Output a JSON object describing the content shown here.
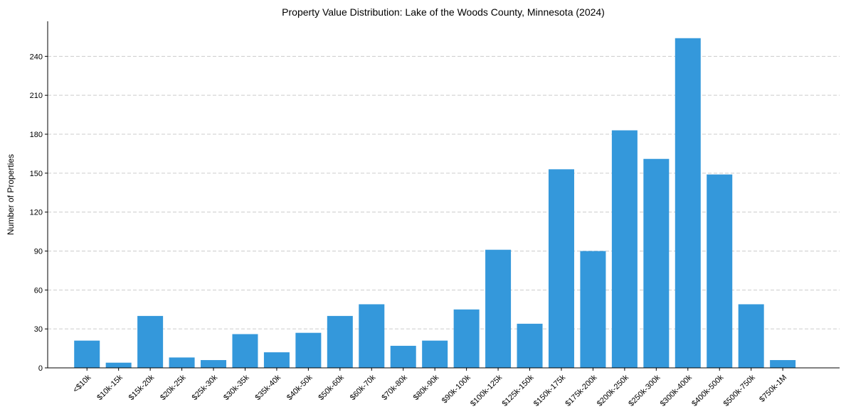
{
  "chart_data": {
    "type": "bar",
    "title": "Property Value Distribution: Lake of the Woods County, Minnesota (2024)",
    "xlabel": "",
    "ylabel": "Number of Properties",
    "ylim": [
      0,
      267
    ],
    "yticks": [
      0,
      30,
      60,
      90,
      120,
      150,
      180,
      210,
      240
    ],
    "grid": "y-dashed",
    "bar_color": "#3498db",
    "categories": [
      "<$10k",
      "$10k-15k",
      "$15k-20k",
      "$20k-25k",
      "$25k-30k",
      "$30k-35k",
      "$35k-40k",
      "$40k-50k",
      "$50k-60k",
      "$60k-70k",
      "$70k-80k",
      "$80k-90k",
      "$90k-100k",
      "$100k-125k",
      "$125k-150k",
      "$150k-175k",
      "$175k-200k",
      "$200k-250k",
      "$250k-300k",
      "$300k-400k",
      "$400k-500k",
      "$500k-750k",
      "$750k-1M"
    ],
    "values": [
      21,
      4,
      40,
      8,
      6,
      26,
      12,
      27,
      40,
      49,
      17,
      21,
      45,
      91,
      34,
      153,
      90,
      183,
      161,
      254,
      149,
      49,
      6
    ]
  }
}
